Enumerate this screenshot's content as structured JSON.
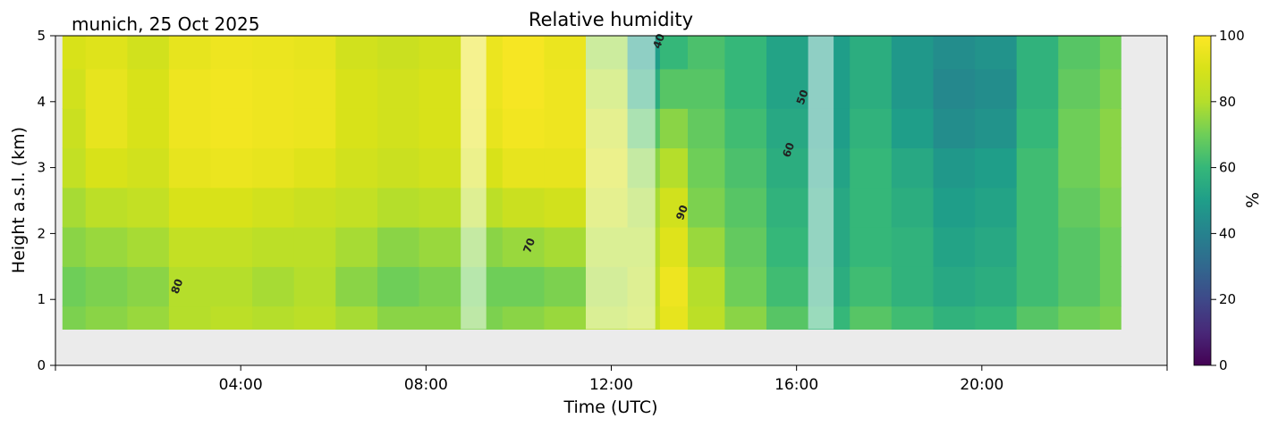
{
  "chart_data": {
    "type": "heatmap",
    "title": "Relative humidity",
    "location_label": "munich, 25 Oct 2025",
    "xlabel": "Time (UTC)",
    "ylabel": "Height a.s.l. (km)",
    "x_range_hours": [
      0,
      24
    ],
    "ylim": [
      0,
      5
    ],
    "x_ticks": [
      {
        "hour": 4,
        "label": "04:00"
      },
      {
        "hour": 8,
        "label": "08:00"
      },
      {
        "hour": 12,
        "label": "12:00"
      },
      {
        "hour": 16,
        "label": "16:00"
      },
      {
        "hour": 20,
        "label": "20:00"
      }
    ],
    "y_ticks": [
      {
        "value": 0,
        "label": "0"
      },
      {
        "value": 1,
        "label": "1"
      },
      {
        "value": 2,
        "label": "2"
      },
      {
        "value": 3,
        "label": "3"
      },
      {
        "value": 4,
        "label": "4"
      },
      {
        "value": 5,
        "label": "5"
      }
    ],
    "data_extent": {
      "x_start_hour": 0.15,
      "x_end_hour": 23.0,
      "y_min_km": 0.55,
      "y_max_km": 5.0
    },
    "time_hours": [
      0.2,
      1.1,
      2.0,
      2.9,
      3.8,
      4.7,
      5.6,
      6.5,
      7.4,
      8.3,
      9.2,
      10.1,
      11.0,
      11.9,
      12.8,
      13.3,
      14.0,
      14.9,
      15.8,
      16.7,
      17.6,
      18.5,
      19.4,
      20.3,
      21.2,
      22.1,
      23.0
    ],
    "height_km": [
      0.6,
      1.2,
      1.8,
      2.4,
      3.0,
      3.6,
      4.2,
      4.8
    ],
    "rh_percent": [
      [
        72,
        70,
        74,
        78,
        84,
        86,
        88,
        90
      ],
      [
        74,
        72,
        76,
        82,
        90,
        94,
        94,
        92
      ],
      [
        76,
        74,
        78,
        84,
        88,
        90,
        90,
        88
      ],
      [
        80,
        80,
        84,
        90,
        94,
        96,
        96,
        94
      ],
      [
        82,
        80,
        84,
        90,
        95,
        97,
        97,
        96
      ],
      [
        80,
        78,
        82,
        88,
        94,
        96,
        96,
        95
      ],
      [
        82,
        80,
        82,
        86,
        92,
        95,
        95,
        94
      ],
      [
        78,
        74,
        78,
        84,
        88,
        90,
        90,
        88
      ],
      [
        74,
        70,
        74,
        80,
        86,
        88,
        88,
        86
      ],
      [
        74,
        72,
        76,
        82,
        88,
        90,
        90,
        88
      ],
      [
        72,
        70,
        74,
        82,
        90,
        94,
        95,
        95
      ],
      [
        74,
        70,
        76,
        86,
        94,
        97,
        98,
        98
      ],
      [
        76,
        72,
        78,
        88,
        94,
        96,
        96,
        95
      ],
      [
        80,
        78,
        80,
        86,
        90,
        86,
        80,
        76
      ],
      [
        84,
        82,
        80,
        78,
        74,
        66,
        56,
        50
      ],
      [
        94,
        96,
        92,
        88,
        80,
        74,
        66,
        60
      ],
      [
        82,
        80,
        76,
        72,
        70,
        68,
        66,
        64
      ],
      [
        74,
        70,
        68,
        66,
        64,
        62,
        60,
        60
      ],
      [
        66,
        62,
        60,
        58,
        56,
        54,
        52,
        52
      ],
      [
        60,
        56,
        54,
        54,
        52,
        50,
        50,
        50
      ],
      [
        66,
        62,
        60,
        60,
        60,
        58,
        56,
        56
      ],
      [
        62,
        58,
        58,
        56,
        54,
        50,
        48,
        48
      ],
      [
        58,
        54,
        52,
        50,
        48,
        44,
        42,
        44
      ],
      [
        60,
        56,
        54,
        52,
        50,
        46,
        44,
        46
      ],
      [
        66,
        62,
        62,
        62,
        62,
        60,
        58,
        58
      ],
      [
        70,
        66,
        66,
        68,
        70,
        70,
        68,
        66
      ],
      [
        72,
        70,
        70,
        72,
        74,
        74,
        72,
        70
      ]
    ],
    "contour_labels": [
      {
        "text": "80",
        "hour": 2.7,
        "height_km": 1.18
      },
      {
        "text": "70",
        "hour": 10.3,
        "height_km": 1.8
      },
      {
        "text": "90",
        "hour": 13.6,
        "height_km": 2.3
      },
      {
        "text": "60",
        "hour": 15.9,
        "height_km": 3.25
      },
      {
        "text": "50",
        "hour": 16.2,
        "height_km": 4.05
      },
      {
        "text": "40",
        "hour": 13.1,
        "height_km": 4.9
      }
    ],
    "masked_intervals_hours": [
      [
        8.75,
        9.3
      ],
      [
        11.45,
        12.95
      ],
      [
        16.25,
        16.8
      ]
    ],
    "colorbar": {
      "label": "%",
      "range": [
        0,
        100
      ],
      "ticks": [
        0,
        20,
        40,
        60,
        80,
        100
      ],
      "colormap": "viridis"
    },
    "colors": {
      "no_data_background": "#ebebeb",
      "contour_line": "#000000",
      "mask_overlay": "#ffffff"
    }
  }
}
